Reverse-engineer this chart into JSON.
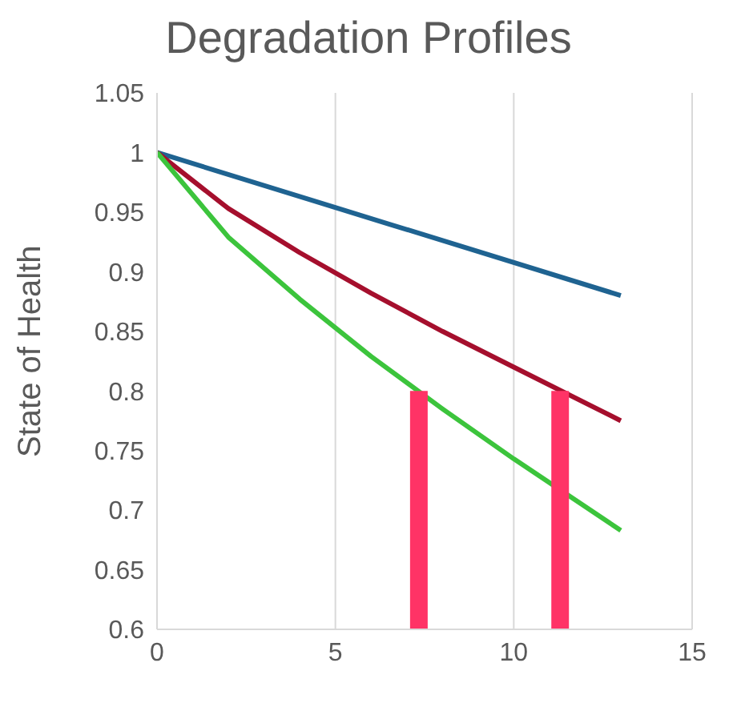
{
  "chart_data": {
    "type": "line",
    "title": "Degradation Profiles",
    "ylabel": "State of Health",
    "xlim": [
      0,
      15
    ],
    "xticks": [
      0,
      5,
      10,
      15
    ],
    "ylim": [
      0.6,
      1.05
    ],
    "yticks": [
      0.6,
      0.65,
      0.7,
      0.75,
      0.8,
      0.85,
      0.9,
      0.95,
      1,
      1.05
    ],
    "grid": "x",
    "marker": "none",
    "line_style": "solid",
    "series": [
      {
        "color": "#1f6391",
        "x": [
          0,
          6.5,
          13
        ],
        "values": [
          1,
          0.94,
          0.88
        ]
      },
      {
        "color": "#a50f2d",
        "x": [
          0,
          2,
          4,
          6,
          8,
          10,
          13
        ],
        "values": [
          1,
          0.953,
          0.916,
          0.882,
          0.85,
          0.82,
          0.775
        ]
      },
      {
        "color": "#3cc43c",
        "x": [
          0,
          2,
          4,
          6,
          8,
          10,
          13
        ],
        "values": [
          1,
          0.929,
          0.877,
          0.829,
          0.785,
          0.743,
          0.683
        ]
      },
      {
        "color": "#ff3366",
        "x": [
          7.34,
          7.34
        ],
        "values": [
          0.6,
          0.8
        ]
      },
      {
        "color": "#ff3366",
        "x": [
          11.3,
          11.3
        ],
        "values": [
          0.6,
          0.8
        ]
      }
    ]
  }
}
